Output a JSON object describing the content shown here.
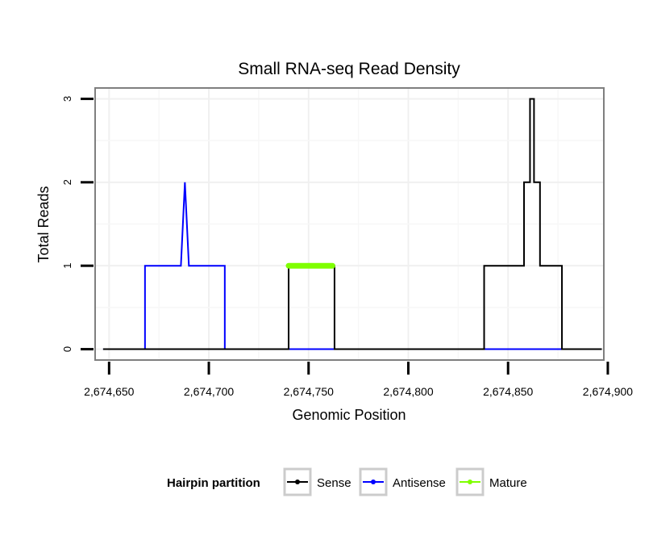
{
  "chart_data": {
    "type": "line",
    "title": "Small RNA-seq Read Density",
    "xlabel": "Genomic Position",
    "ylabel": "Total Reads",
    "xlim": [
      2674643,
      2674898
    ],
    "ylim": [
      -0.13,
      3.13
    ],
    "x_ticks": [
      2674650,
      2674700,
      2674750,
      2674800,
      2674850,
      2674900
    ],
    "x_tick_labels": [
      "2,674,650",
      "2,674,700",
      "2,674,750",
      "2,674,800",
      "2,674,850",
      "2,674,900"
    ],
    "y_ticks": [
      0,
      1,
      2,
      3
    ],
    "y_tick_labels": [
      "0",
      "1",
      "2",
      "3"
    ],
    "grid": true,
    "legend": {
      "title": "Hairpin partition",
      "position": "bottom",
      "entries": [
        "Sense",
        "Antisense",
        "Mature"
      ]
    },
    "series": [
      {
        "name": "Sense",
        "color": "#000000",
        "x": [
          2674647,
          2674740,
          2674740,
          2674763,
          2674763,
          2674838,
          2674838,
          2674858,
          2674858,
          2674861,
          2674861,
          2674863,
          2674863,
          2674866,
          2674866,
          2674877,
          2674877,
          2674882,
          2674882,
          2674897
        ],
        "y": [
          0,
          0,
          1,
          1,
          0,
          0,
          1,
          1,
          2,
          2,
          3,
          3,
          2,
          2,
          1,
          1,
          0,
          0,
          0,
          0
        ]
      },
      {
        "name": "Antisense",
        "color": "#0000ff",
        "x": [
          2674647,
          2674668,
          2674668,
          2674686,
          2674688,
          2674690,
          2674708,
          2674708,
          2674885
        ],
        "y": [
          0,
          0,
          1,
          1,
          2,
          1,
          1,
          0,
          0
        ]
      },
      {
        "name": "Mature",
        "color": "#7fff00",
        "x": [
          2674740,
          2674762
        ],
        "y": [
          1,
          1
        ]
      }
    ]
  }
}
